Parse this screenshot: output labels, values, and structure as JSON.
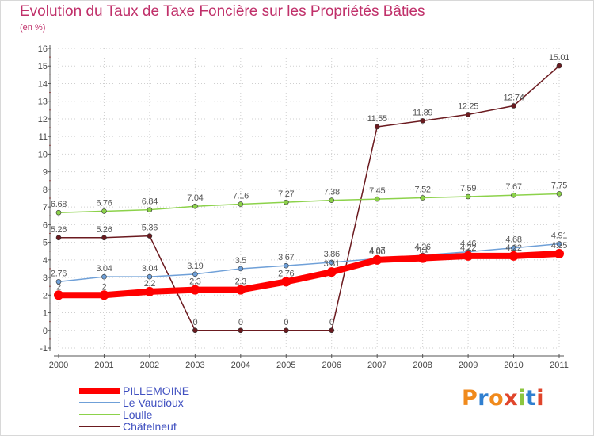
{
  "title": "Evolution du Taux de Taxe Foncière sur les Propriétés Bâties",
  "unit_label": "(en %)",
  "logo_text": "Proxiti",
  "chart_data": {
    "type": "line",
    "x": [
      "2000",
      "2001",
      "2002",
      "2003",
      "2004",
      "2005",
      "2006",
      "2007",
      "2008",
      "2009",
      "2010",
      "2011"
    ],
    "y_ticks": [
      -1,
      0,
      1,
      2,
      3,
      4,
      5,
      6,
      7,
      8,
      9,
      10,
      11,
      12,
      13,
      14,
      15,
      16
    ],
    "ylim": [
      -1,
      16
    ],
    "grid": true,
    "legend_position": "bottom-left",
    "series": [
      {
        "name": "Châtelneuf",
        "color": "#6b1a1f",
        "labels": [
          "5.26",
          "5.26",
          "5.36",
          "0",
          "0",
          "0",
          "0",
          "11.55",
          "11.89",
          "12.25",
          "12.74",
          "15.01"
        ],
        "values": [
          5.26,
          5.26,
          5.36,
          0,
          0,
          0,
          0,
          11.55,
          11.89,
          12.25,
          12.74,
          15.01
        ]
      },
      {
        "name": "Loulle",
        "color": "#8cd24a",
        "labels": [
          "6.68",
          "6.76",
          "6.84",
          "7.04",
          "7.16",
          "7.27",
          "7.38",
          "7.45",
          "7.52",
          "7.59",
          "7.67",
          "7.75"
        ],
        "values": [
          6.68,
          6.76,
          6.84,
          7.04,
          7.16,
          7.27,
          7.38,
          7.45,
          7.52,
          7.59,
          7.67,
          7.75
        ]
      },
      {
        "name": "Le Vaudioux",
        "color": "#6fa0d8",
        "labels": [
          "2.76",
          "3.04",
          "3.04",
          "3.19",
          "3.5",
          "3.67",
          "3.86",
          "4.07",
          "4.26",
          "4.46",
          "4.68",
          "4.91"
        ],
        "values": [
          2.76,
          3.04,
          3.04,
          3.19,
          3.5,
          3.67,
          3.86,
          4.07,
          4.26,
          4.46,
          4.68,
          4.91
        ]
      },
      {
        "name": "PILLEMOINE",
        "color": "#ff0000",
        "labels": [
          "2",
          "2",
          "2.2",
          "2.3",
          "2.3",
          "2.76",
          "3.31",
          "4.00",
          "4.1",
          "4.22",
          "4.22",
          "4.35"
        ],
        "values": [
          2,
          2,
          2.2,
          2.3,
          2.3,
          2.76,
          3.31,
          4.0,
          4.1,
          4.22,
          4.22,
          4.35
        ]
      }
    ],
    "legend_order": [
      "PILLEMOINE",
      "Le Vaudioux",
      "Loulle",
      "Châtelneuf"
    ]
  }
}
